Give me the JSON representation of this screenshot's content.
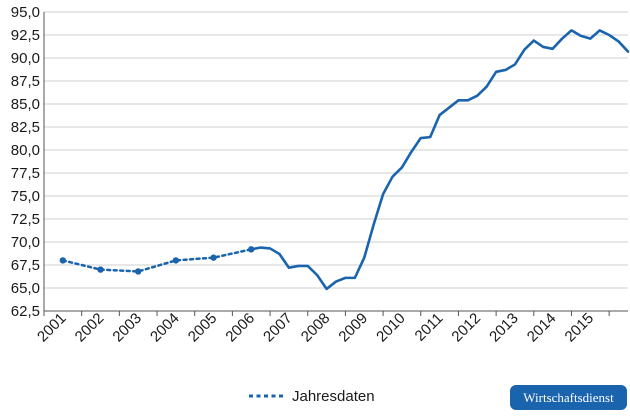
{
  "chart_data": {
    "type": "line",
    "ylim": [
      62.5,
      95.0
    ],
    "y_ticks": [
      "62,5",
      "65,0",
      "67,5",
      "70,0",
      "72,5",
      "75,0",
      "77,5",
      "80,0",
      "82,5",
      "85,0",
      "87,5",
      "90,0",
      "92,5",
      "95,0"
    ],
    "x_tick_labels": [
      "2001",
      "2002",
      "2003",
      "2004",
      "2005",
      "2006",
      "2007",
      "2008",
      "2009",
      "2010",
      "2011",
      "2012",
      "2013",
      "2014",
      "2015"
    ],
    "grid": "horizontal",
    "legend_position": "bottom-center",
    "colors": {
      "line": "#1a64ad",
      "grid": "#cfcfcf",
      "axis": "#555555",
      "badge": "#1a64ad"
    },
    "series": [
      {
        "name": "Jahresdaten",
        "style": "dotted",
        "x": [
          2001,
          2002,
          2003,
          2004,
          2005,
          2006
        ],
        "y": [
          68.0,
          67.0,
          66.8,
          68.0,
          68.3,
          69.2
        ]
      },
      {
        "name": "",
        "style": "solid",
        "x": [
          2006.0,
          2006.25,
          2006.5,
          2006.75,
          2007.0,
          2007.25,
          2007.5,
          2007.75,
          2008.0,
          2008.25,
          2008.5,
          2008.75,
          2009.0,
          2009.25,
          2009.5,
          2009.75,
          2010.0,
          2010.25,
          2010.5,
          2010.75,
          2011.0,
          2011.25,
          2011.5,
          2011.75,
          2012.0,
          2012.25,
          2012.5,
          2012.75,
          2013.0,
          2013.25,
          2013.5,
          2013.75,
          2014.0,
          2014.25,
          2014.5,
          2014.75,
          2015.0,
          2015.25,
          2015.5,
          2015.75,
          2016.0
        ],
        "y": [
          69.2,
          69.4,
          69.3,
          68.7,
          67.2,
          67.4,
          67.4,
          66.4,
          64.9,
          65.7,
          66.1,
          66.1,
          68.3,
          71.9,
          75.2,
          77.1,
          78.1,
          79.8,
          81.3,
          81.4,
          83.8,
          84.6,
          85.4,
          85.4,
          85.9,
          86.9,
          88.5,
          88.7,
          89.3,
          90.9,
          91.9,
          91.2,
          91.0,
          92.1,
          93.0,
          92.4,
          92.1,
          93.0,
          92.5,
          91.8,
          90.7
        ]
      }
    ]
  },
  "legend": {
    "label": "Jahresdaten"
  },
  "badge": {
    "label": "Wirtschaftsdienst"
  }
}
